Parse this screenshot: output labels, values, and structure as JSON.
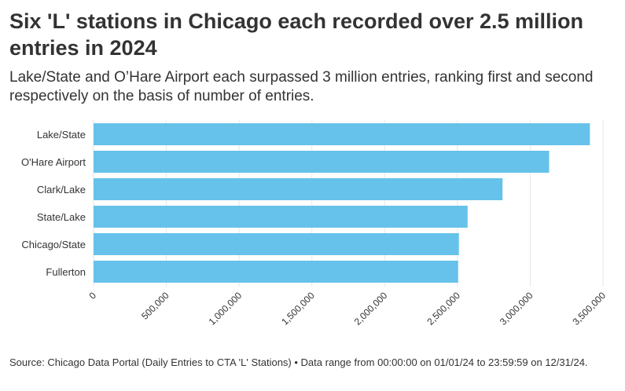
{
  "title": "Six 'L' stations in Chicago each recorded over 2.5 million entries in 2024",
  "subtitle": "Lake/State and O’Hare Airport each surpassed 3 million entries, ranking first and second respectively on the basis of number of entries.",
  "source": "Source: Chicago Data Portal (Daily Entries to CTA 'L' Stations) • Data range from 00:00:00 on 01/01/24 to 23:59:59 on 12/31/24.",
  "colors": {
    "bar": "#66c2ea",
    "grid": "#e6e6e6",
    "text": "#333333"
  },
  "chart_data": {
    "type": "bar",
    "orientation": "horizontal",
    "categories": [
      "Lake/State",
      "O'Hare Airport",
      "Clark/Lake",
      "State/Lake",
      "Chicago/State",
      "Fullerton"
    ],
    "values": [
      3410000,
      3130000,
      2810000,
      2570000,
      2510000,
      2505000
    ],
    "xlim": [
      0,
      3500000
    ],
    "xticks": [
      0,
      500000,
      1000000,
      1500000,
      2000000,
      2500000,
      3000000,
      3500000
    ],
    "xtick_labels": [
      "0",
      "500,000",
      "1,000,000",
      "1,500,000",
      "2,000,000",
      "2,500,000",
      "3,000,000",
      "3,500,000"
    ],
    "grid": true,
    "legend": "none"
  }
}
